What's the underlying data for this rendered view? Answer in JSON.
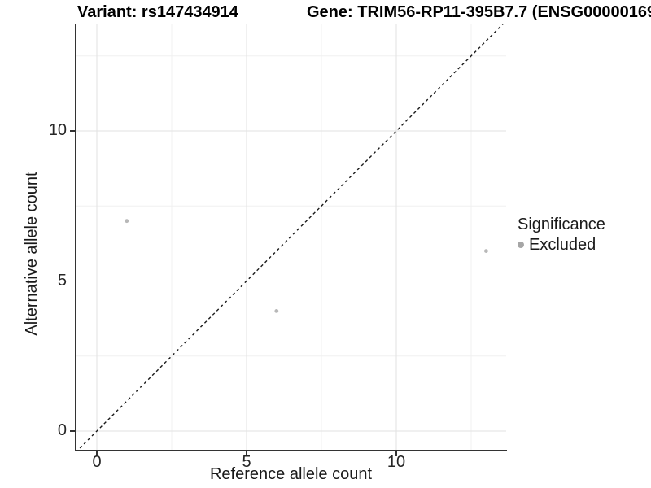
{
  "chart_data": {
    "type": "scatter",
    "title_left": "Variant: rs147434914",
    "title_right": "Gene: TRIM56-RP11-395B7.7 (ENSG00000169",
    "xlabel": "Reference allele count",
    "ylabel": "Alternative allele count",
    "xlim": [
      -0.7,
      13.7
    ],
    "ylim": [
      -0.7,
      13.6
    ],
    "x_major_ticks": [
      0,
      5,
      10
    ],
    "y_major_ticks": [
      0,
      5,
      10
    ],
    "x_minor_gridlines": [
      2.5,
      7.5,
      12.5
    ],
    "y_minor_gridlines": [
      2.5,
      7.5,
      12.5
    ],
    "grid": "major and minor gridlines visible, legend at right",
    "series": [
      {
        "name": "Excluded",
        "color": "#b8b8b8",
        "points": [
          [
            1,
            7
          ],
          [
            6,
            4
          ],
          [
            13,
            6
          ]
        ]
      }
    ],
    "reference_line": {
      "type": "identity y=x",
      "style": "dashed",
      "color": "#1a1a1a"
    },
    "legend": {
      "position": "right",
      "title": "Significance",
      "items": [
        {
          "label": "Excluded",
          "color": "#a6a6a6"
        }
      ]
    }
  },
  "colors": {
    "background": "#ffffff",
    "axis_line": "#333333",
    "tick_text": "#262626",
    "grid_major": "#e2e2e2",
    "grid_minor": "#f0f0f0",
    "point": "#b8b8b8",
    "legend_marker": "#a6a6a6",
    "identity_line": "#1a1a1a"
  }
}
